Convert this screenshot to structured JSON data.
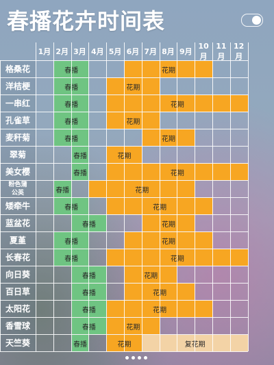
{
  "title": "春播花卉时间表",
  "toggle_icon": "toggle-icon",
  "months": [
    "1月",
    "2月",
    "3月",
    "4月",
    "5月",
    "6月",
    "7月",
    "8月",
    "9月",
    "10月",
    "11月",
    "12月"
  ],
  "phase_labels": {
    "spring": "春播",
    "bloom": "花期",
    "rebloom": "复花期"
  },
  "colors": {
    "spring": "#6fc482",
    "bloom": "#f7a622",
    "rebloom": "#f3d3a6"
  },
  "flowers": [
    {
      "name": "格桑花",
      "sow": [
        2,
        3
      ],
      "bloom": [
        6,
        10
      ]
    },
    {
      "name": "洋桔梗",
      "sow": [
        2,
        3
      ],
      "bloom": [
        5,
        7
      ]
    },
    {
      "name": "一串红",
      "sow": [
        2,
        3
      ],
      "bloom": [
        5,
        12
      ]
    },
    {
      "name": "孔雀草",
      "sow": [
        2,
        3
      ],
      "bloom": [
        5,
        7
      ]
    },
    {
      "name": "麦秆菊",
      "sow": [
        2,
        3
      ],
      "bloom": [
        7,
        9
      ]
    },
    {
      "name": "翠菊",
      "sow": [
        3,
        3
      ],
      "bloom": [
        5,
        6
      ]
    },
    {
      "name": "美女樱",
      "sow": [
        3,
        3
      ],
      "bloom": [
        5,
        12
      ]
    },
    {
      "name": "粉色蒲\n公英",
      "sow": [
        2,
        2
      ],
      "bloom": [
        4,
        9
      ]
    },
    {
      "name": "矮牵牛",
      "sow": [
        2,
        3
      ],
      "bloom": [
        5,
        10
      ]
    },
    {
      "name": "蓝盆花",
      "sow": [
        3,
        4
      ],
      "bloom": [
        7,
        9
      ]
    },
    {
      "name": "夏堇",
      "sow": [
        2,
        3
      ],
      "bloom": [
        6,
        10
      ]
    },
    {
      "name": "长春花",
      "sow": [
        2,
        3
      ],
      "bloom": [
        5,
        12
      ]
    },
    {
      "name": "向日葵",
      "sow": [
        3,
        4
      ],
      "bloom": [
        6,
        8
      ]
    },
    {
      "name": "百日草",
      "sow": [
        3,
        4
      ],
      "bloom": [
        6,
        9
      ]
    },
    {
      "name": "太阳花",
      "sow": [
        3,
        4
      ],
      "bloom": [
        5,
        10
      ]
    },
    {
      "name": "香雪球",
      "sow": [
        3,
        4
      ],
      "bloom": [
        5,
        7
      ]
    },
    {
      "name": "天竺葵",
      "sow": [
        3,
        3
      ],
      "bloom": [
        5,
        6
      ],
      "rebloom": [
        7,
        12
      ]
    }
  ]
}
